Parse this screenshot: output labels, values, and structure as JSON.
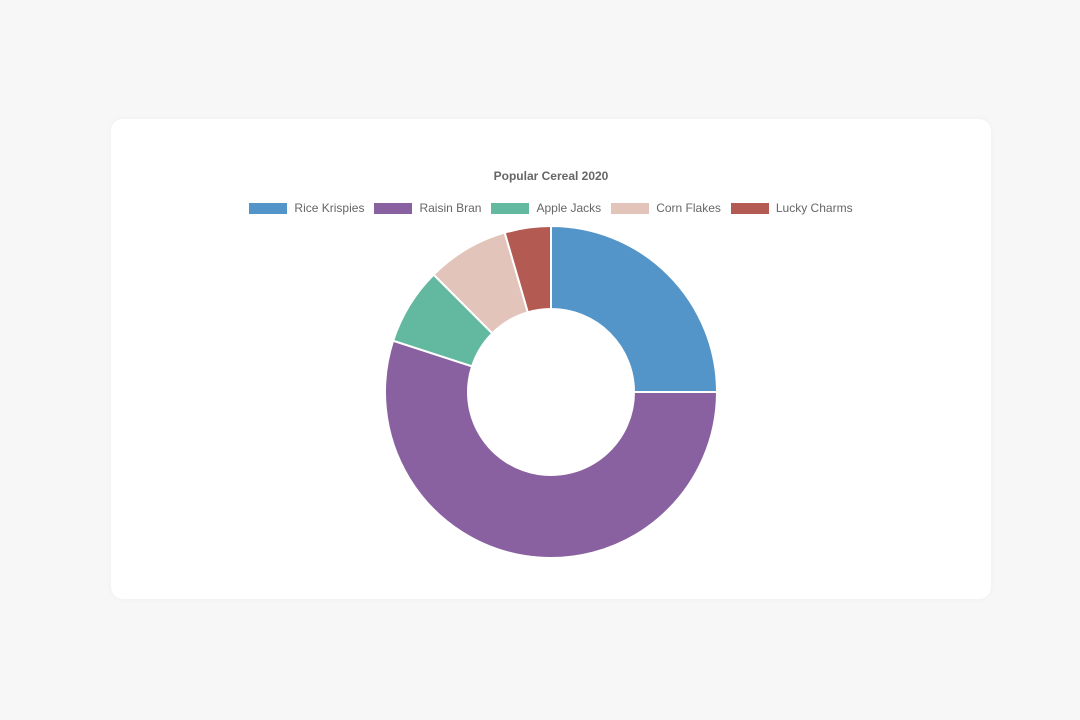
{
  "chart_data": {
    "type": "pie",
    "variant": "doughnut",
    "title": "Popular Cereal 2020",
    "legend_position": "top",
    "categories": [
      "Rice Krispies",
      "Raisin Bran",
      "Apple Jacks",
      "Corn Flakes",
      "Lucky Charms"
    ],
    "values": [
      25,
      55,
      7.5,
      8,
      4.5
    ],
    "colors": [
      "#5495c9",
      "#8a61a0",
      "#63b8a0",
      "#e2c4bb",
      "#b35a52"
    ]
  }
}
